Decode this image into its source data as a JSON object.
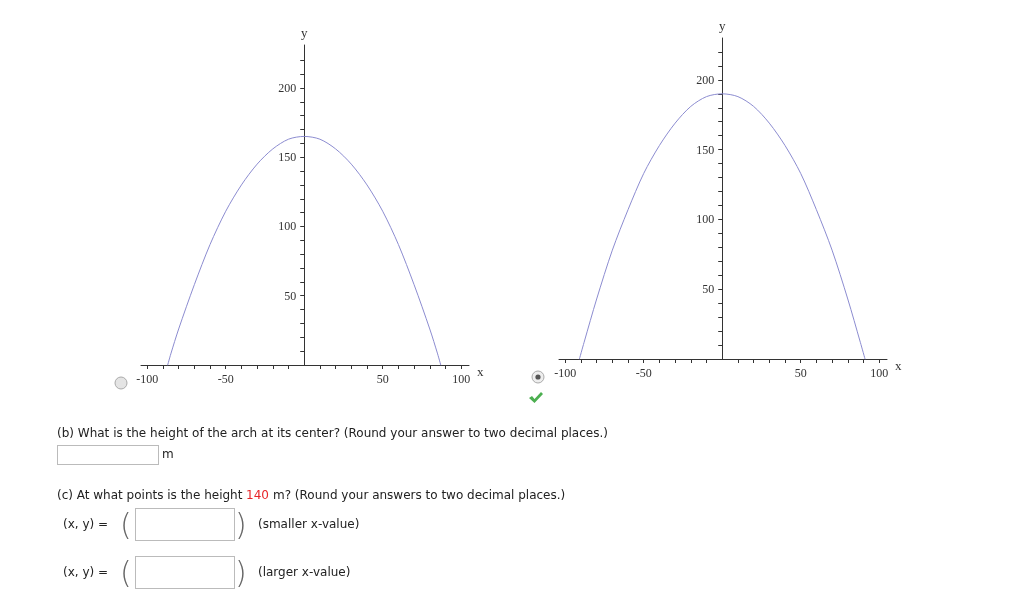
{
  "chart_data": [
    {
      "type": "line",
      "xlabel": "x",
      "ylabel": "y",
      "xlim": [
        -104,
        105
      ],
      "ylim": [
        0,
        231
      ],
      "xticks": [
        -100,
        {
          "value": -90,
          "label": null
        },
        {
          "value": -80,
          "label": null
        },
        {
          "value": -70,
          "label": null
        },
        {
          "value": -60,
          "label": null
        },
        -50,
        {
          "value": -40,
          "label": null
        },
        {
          "value": -30,
          "label": null
        },
        {
          "value": -20,
          "label": null
        },
        {
          "value": -10,
          "label": null
        },
        {
          "value": 10,
          "label": null
        },
        {
          "value": 20,
          "label": null
        },
        {
          "value": 30,
          "label": null
        },
        {
          "value": 40,
          "label": null
        },
        50,
        {
          "value": 60,
          "label": null
        },
        {
          "value": 70,
          "label": null
        },
        {
          "value": 80,
          "label": null
        },
        {
          "value": 90,
          "label": null
        },
        100
      ],
      "yticks": [
        {
          "value": 10,
          "label": null
        },
        {
          "value": 20,
          "label": null
        },
        {
          "value": 30,
          "label": null
        },
        {
          "value": 40,
          "label": null
        },
        50,
        {
          "value": 60,
          "label": null
        },
        {
          "value": 70,
          "label": null
        },
        {
          "value": 80,
          "label": null
        },
        {
          "value": 90,
          "label": null
        },
        100,
        {
          "value": 110,
          "label": null
        },
        {
          "value": 120,
          "label": null
        },
        {
          "value": 130,
          "label": null
        },
        {
          "value": 140,
          "label": null
        },
        150,
        {
          "value": 160,
          "label": null
        },
        {
          "value": 170,
          "label": null
        },
        {
          "value": 180,
          "label": null
        },
        {
          "value": 190,
          "label": null
        },
        200,
        {
          "value": 210,
          "label": null
        },
        {
          "value": 220,
          "label": null
        }
      ],
      "marker": "none",
      "line_style": "solid",
      "series": [
        {
          "color": "#8c8cd0",
          "x": [
            -87,
            -85,
            -80,
            -70,
            -60,
            -50,
            -40,
            -30,
            -20,
            -10,
            0,
            10,
            20,
            30,
            40,
            50,
            60,
            70,
            80,
            85,
            87
          ],
          "values": [
            0,
            8,
            26,
            58,
            87,
            111,
            130,
            145,
            156,
            163,
            165,
            163,
            156,
            145,
            130,
            111,
            87,
            58,
            26,
            8,
            0
          ]
        }
      ]
    },
    {
      "type": "line",
      "xlabel": "x",
      "ylabel": "y",
      "xlim": [
        -104,
        105
      ],
      "ylim": [
        0,
        230
      ],
      "xticks": [
        -100,
        {
          "value": -90,
          "label": null
        },
        {
          "value": -80,
          "label": null
        },
        {
          "value": -70,
          "label": null
        },
        {
          "value": -60,
          "label": null
        },
        -50,
        {
          "value": -40,
          "label": null
        },
        {
          "value": -30,
          "label": null
        },
        {
          "value": -20,
          "label": null
        },
        {
          "value": -10,
          "label": null
        },
        {
          "value": 10,
          "label": null
        },
        {
          "value": 20,
          "label": null
        },
        {
          "value": 30,
          "label": null
        },
        {
          "value": 40,
          "label": null
        },
        50,
        {
          "value": 60,
          "label": null
        },
        {
          "value": 70,
          "label": null
        },
        {
          "value": 80,
          "label": null
        },
        {
          "value": 90,
          "label": null
        },
        100
      ],
      "yticks": [
        {
          "value": 10,
          "label": null
        },
        {
          "value": 20,
          "label": null
        },
        {
          "value": 30,
          "label": null
        },
        {
          "value": 40,
          "label": null
        },
        50,
        {
          "value": 60,
          "label": null
        },
        {
          "value": 70,
          "label": null
        },
        {
          "value": 80,
          "label": null
        },
        {
          "value": 90,
          "label": null
        },
        100,
        {
          "value": 110,
          "label": null
        },
        {
          "value": 120,
          "label": null
        },
        {
          "value": 130,
          "label": null
        },
        {
          "value": 140,
          "label": null
        },
        150,
        {
          "value": 160,
          "label": null
        },
        {
          "value": 170,
          "label": null
        },
        {
          "value": 180,
          "label": null
        },
        {
          "value": 190,
          "label": null
        },
        200,
        {
          "value": 210,
          "label": null
        },
        {
          "value": 220,
          "label": null
        }
      ],
      "marker": "none",
      "line_style": "solid",
      "series": [
        {
          "color": "#8c8cd0",
          "x": [
            -91,
            -88,
            -80,
            -70,
            -60,
            -50,
            -40,
            -30,
            -20,
            -10,
            0,
            10,
            20,
            30,
            40,
            50,
            60,
            70,
            80,
            88,
            91
          ],
          "values": [
            0,
            12,
            43,
            78,
            107,
            133,
            153,
            169,
            181,
            188,
            190,
            188,
            181,
            169,
            153,
            133,
            107,
            78,
            43,
            12,
            0
          ]
        }
      ]
    },
    {
      "type": "other",
      "annotations": [
        "(b) What is the height of the arch at its center? (Round your answer to two decimal places.)",
        "m",
        "(c) At what points is the height",
        "140",
        "m? (Round your answers to two decimal places.)",
        "(x, y) =",
        "(",
        ")",
        "(smaller x-value)",
        "(x, y) =",
        "(",
        ")",
        "(larger x-value)"
      ]
    }
  ]
}
